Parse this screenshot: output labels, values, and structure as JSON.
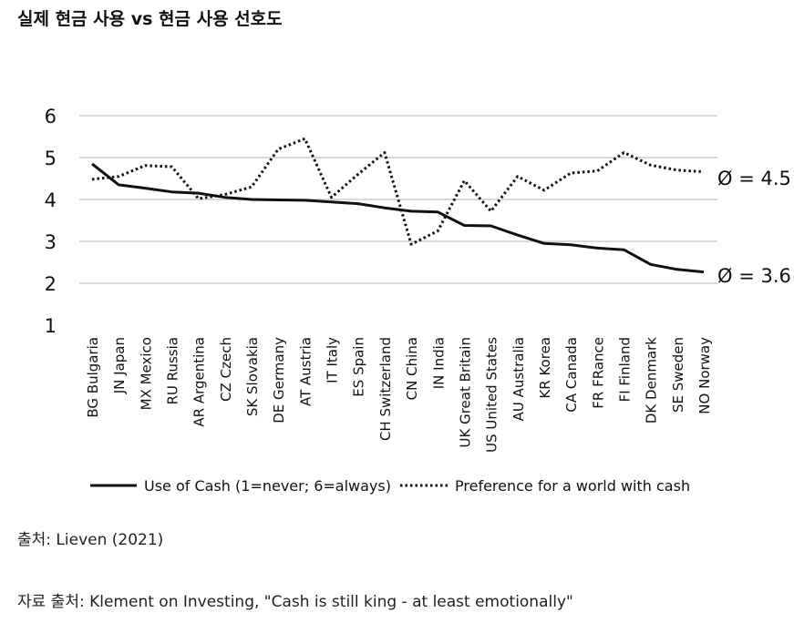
{
  "page": {
    "title": "실제 현금 사용 vs 현금 사용 선호도",
    "source_1": "출처: Lieven (2021)",
    "source_2": "자료 출처: Klement on Investing, \"Cash is still king - at least emotionally\""
  },
  "chart_data": {
    "type": "line",
    "title": "",
    "xlabel": "",
    "ylabel": "",
    "ylim": [
      1,
      6
    ],
    "yticks": [
      1,
      2,
      3,
      4,
      5,
      6
    ],
    "grid": true,
    "legend_position": "bottom",
    "categories": [
      "BG Bulgaria",
      "JN Japan",
      "MX Mexico",
      "RU Russia",
      "AR Argentina",
      "CZ Czech",
      "SK Slovakia",
      "DE Germany",
      "AT Austria",
      "IT Italy",
      "ES Spain",
      "CH Switzerland",
      "CN China",
      "IN India",
      "UK Great Britain",
      "US United States",
      "AU Australia",
      "KR Korea",
      "CA Canada",
      "FR FRance",
      "FI Finland",
      "DK Denmark",
      "SE Sweden",
      "NO Norway"
    ],
    "series": [
      {
        "name": "Use of Cash (1=never; 6=always)",
        "style": "solid",
        "color": "#111111",
        "values": [
          4.85,
          4.35,
          4.27,
          4.18,
          4.15,
          4.05,
          4.0,
          3.99,
          3.98,
          3.94,
          3.9,
          3.8,
          3.72,
          3.7,
          3.38,
          3.37,
          3.15,
          2.95,
          2.92,
          2.84,
          2.8,
          2.45,
          2.33,
          2.27
        ],
        "end_label": "Ø = 3.6"
      },
      {
        "name": "Preference for a world with cash",
        "style": "dotted",
        "color": "#111111",
        "values": [
          4.48,
          4.55,
          4.81,
          4.78,
          4.02,
          4.12,
          4.3,
          5.2,
          5.45,
          4.05,
          4.6,
          5.12,
          2.93,
          3.25,
          4.45,
          3.72,
          4.55,
          4.22,
          4.63,
          4.68,
          5.12,
          4.82,
          4.7,
          4.66
        ],
        "end_label": "Ø = 4.5"
      }
    ]
  }
}
